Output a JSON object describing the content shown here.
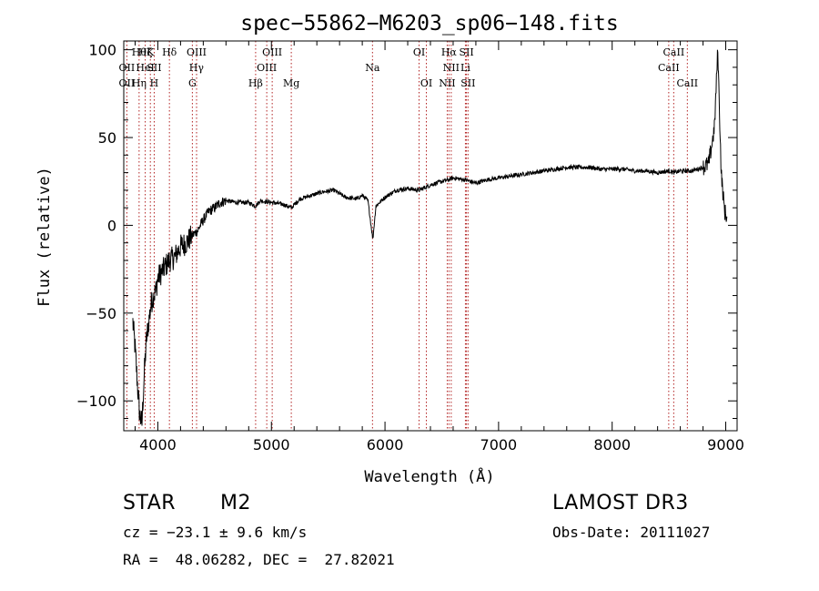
{
  "chart_data": {
    "type": "line",
    "title": "spec−55862−M6203_sp06−148.fits",
    "xlabel": "Wavelength (Å)",
    "ylabel": "Flux (relative)",
    "xlim": [
      3700,
      9100
    ],
    "ylim": [
      -117,
      105
    ],
    "x_ticks": [
      4000,
      5000,
      6000,
      7000,
      8000,
      9000
    ],
    "x_tick_labels": [
      "4000",
      "5000",
      "6000",
      "7000",
      "8000",
      "9000"
    ],
    "y_ticks": [
      100,
      50,
      0,
      -50,
      -100
    ],
    "y_tick_labels": [
      "100",
      "50",
      "0",
      "−50",
      "−100"
    ],
    "series": [
      {
        "name": "flux",
        "points": [
          [
            3780,
            -55
          ],
          [
            3800,
            -70
          ],
          [
            3820,
            -90
          ],
          [
            3840,
            -108
          ],
          [
            3860,
            -113
          ],
          [
            3880,
            -85
          ],
          [
            3900,
            -65
          ],
          [
            3920,
            -55
          ],
          [
            3940,
            -45
          ],
          [
            3960,
            -40
          ],
          [
            3980,
            -38
          ],
          [
            4000,
            -30
          ],
          [
            4050,
            -25
          ],
          [
            4100,
            -20
          ],
          [
            4150,
            -18
          ],
          [
            4200,
            -12
          ],
          [
            4250,
            -10
          ],
          [
            4300,
            -6
          ],
          [
            4350,
            -3
          ],
          [
            4400,
            3
          ],
          [
            4450,
            8
          ],
          [
            4500,
            10
          ],
          [
            4550,
            13
          ],
          [
            4600,
            14
          ],
          [
            4700,
            13
          ],
          [
            4800,
            13
          ],
          [
            4861,
            11
          ],
          [
            4900,
            14
          ],
          [
            5000,
            13
          ],
          [
            5100,
            12
          ],
          [
            5175,
            10
          ],
          [
            5250,
            15
          ],
          [
            5350,
            17
          ],
          [
            5450,
            19
          ],
          [
            5550,
            20
          ],
          [
            5650,
            16
          ],
          [
            5750,
            15
          ],
          [
            5800,
            17
          ],
          [
            5850,
            14
          ],
          [
            5893,
            -8
          ],
          [
            5920,
            11
          ],
          [
            6000,
            16
          ],
          [
            6100,
            20
          ],
          [
            6200,
            21
          ],
          [
            6300,
            20
          ],
          [
            6400,
            23
          ],
          [
            6500,
            25
          ],
          [
            6563,
            26
          ],
          [
            6600,
            27
          ],
          [
            6700,
            26
          ],
          [
            6800,
            24
          ],
          [
            6900,
            26
          ],
          [
            7000,
            27
          ],
          [
            7100,
            28
          ],
          [
            7200,
            29
          ],
          [
            7300,
            30
          ],
          [
            7400,
            31
          ],
          [
            7500,
            32
          ],
          [
            7600,
            33
          ],
          [
            7700,
            33
          ],
          [
            7800,
            33
          ],
          [
            7900,
            32
          ],
          [
            8000,
            32
          ],
          [
            8100,
            32
          ],
          [
            8200,
            31
          ],
          [
            8300,
            31
          ],
          [
            8400,
            30
          ],
          [
            8500,
            31
          ],
          [
            8550,
            30
          ],
          [
            8600,
            31
          ],
          [
            8700,
            31
          ],
          [
            8800,
            33
          ],
          [
            8850,
            35
          ],
          [
            8900,
            55
          ],
          [
            8930,
            100
          ],
          [
            8960,
            30
          ],
          [
            8990,
            8
          ],
          [
            9010,
            5
          ]
        ]
      }
    ],
    "lines": [
      {
        "wl": 3835,
        "row": 1,
        "label": "Hθ"
      },
      {
        "wl": 3889,
        "row": 1,
        "label": "Hζ"
      },
      {
        "wl": 3934,
        "row": 1,
        "label": "K"
      },
      {
        "wl": 4102,
        "row": 1,
        "label": "Hδ"
      },
      {
        "wl": 4341,
        "row": 1,
        "label": "OIII"
      },
      {
        "wl": 5007,
        "row": 1,
        "label": "OIII"
      },
      {
        "wl": 6300,
        "row": 1,
        "label": "OI"
      },
      {
        "wl": 6563,
        "row": 1,
        "label": "Hα"
      },
      {
        "wl": 6717,
        "row": 1,
        "label": "SII"
      },
      {
        "wl": 8542,
        "row": 1,
        "label": "CaII"
      },
      {
        "wl": 3727,
        "row": 2,
        "label": "OII"
      },
      {
        "wl": 3889,
        "row": 2,
        "label": "HeI"
      },
      {
        "wl": 3968,
        "row": 2,
        "label": "SII"
      },
      {
        "wl": 4340,
        "row": 2,
        "label": "Hγ"
      },
      {
        "wl": 4959,
        "row": 2,
        "label": "OIII"
      },
      {
        "wl": 5890,
        "row": 2,
        "label": "Na"
      },
      {
        "wl": 6583,
        "row": 2,
        "label": "NII"
      },
      {
        "wl": 6708,
        "row": 2,
        "label": "Li"
      },
      {
        "wl": 8498,
        "row": 2,
        "label": "CaII"
      },
      {
        "wl": 3727,
        "row": 3,
        "label": "OII"
      },
      {
        "wl": 3835,
        "row": 3,
        "label": "Hη"
      },
      {
        "wl": 3968,
        "row": 3,
        "label": "H"
      },
      {
        "wl": 4304,
        "row": 3,
        "label": "G"
      },
      {
        "wl": 4861,
        "row": 3,
        "label": "Hβ"
      },
      {
        "wl": 5175,
        "row": 3,
        "label": "Mg"
      },
      {
        "wl": 6364,
        "row": 3,
        "label": "OI"
      },
      {
        "wl": 6548,
        "row": 3,
        "label": "NII"
      },
      {
        "wl": 6731,
        "row": 3,
        "label": "SII"
      },
      {
        "wl": 8662,
        "row": 3,
        "label": "CaII"
      }
    ],
    "colors": {
      "spectrum": "#000000",
      "line_markers": "#b22222",
      "axes": "#000000"
    }
  },
  "info": {
    "class_label": "STAR",
    "subclass": "M2",
    "survey": "LAMOST DR3",
    "cz": "cz = −23.1 ± 9.6 km/s",
    "obs_date": "Obs-Date: 20111027",
    "radec": "RA =  48.06282, DEC =  27.82021"
  }
}
